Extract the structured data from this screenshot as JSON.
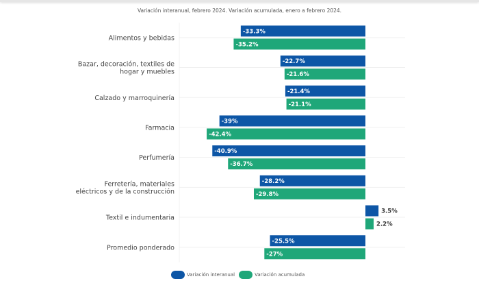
{
  "chart_data": {
    "type": "bar",
    "orientation": "horizontal",
    "subtitle": "Variación interanual, febrero 2024. Variación acumulada, enero a febrero 2024.",
    "categories": [
      [
        "Alimentos y bebidas"
      ],
      [
        "Bazar, decoración, textiles de",
        "hogar y muebles"
      ],
      [
        "Calzado y marroquinería"
      ],
      [
        "Farmacia"
      ],
      [
        "Perfumería"
      ],
      [
        "Ferretería, materiales",
        "eléctricos y de la construcción"
      ],
      [
        "Textil e indumentaria"
      ],
      [
        "Promedio ponderado"
      ]
    ],
    "series": [
      {
        "name": "Variación interanual",
        "color": "#0d56a6",
        "values": [
          -33.3,
          -22.7,
          -21.4,
          -39,
          -40.9,
          -28.2,
          3.5,
          -25.5
        ],
        "labels": [
          "-33.3%",
          "-22.7%",
          "-21.4%",
          "-39%",
          "-40.9%",
          "-28.2%",
          "3.5%",
          "-25.5%"
        ]
      },
      {
        "name": "Variación acumulada",
        "color": "#1fa779",
        "values": [
          -35.2,
          -21.6,
          -21.1,
          -42.4,
          -36.7,
          -29.8,
          2.2,
          -27
        ],
        "labels": [
          "-35.2%",
          "-21.6%",
          "-21.1%",
          "-42.4%",
          "-36.7%",
          "-29.8%",
          "2.2%",
          "-27%"
        ]
      }
    ],
    "xlim": [
      -45,
      5
    ],
    "grid": true,
    "legend": "bottom"
  }
}
